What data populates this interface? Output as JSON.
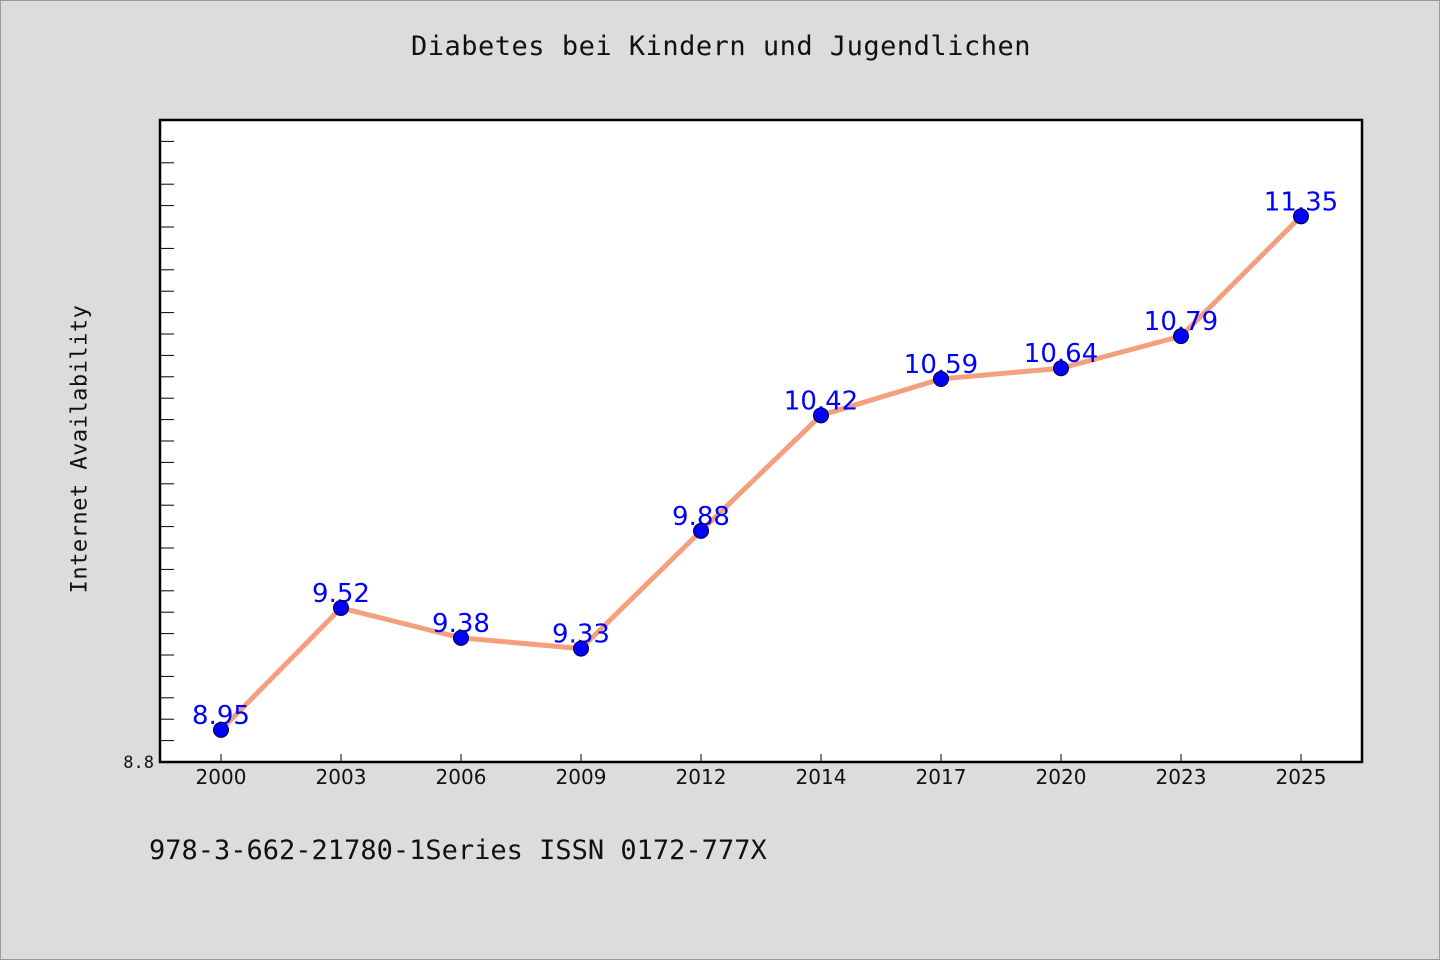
{
  "chart_data": {
    "type": "line",
    "title": "Diabetes bei Kindern und Jugendlichen",
    "ylabel": "Internet Availability",
    "xlabel": "",
    "categories": [
      "2000",
      "2003",
      "2006",
      "2009",
      "2012",
      "2014",
      "2017",
      "2020",
      "2023",
      "2025"
    ],
    "series": [
      {
        "values": [
          8.95,
          9.52,
          9.38,
          9.33,
          9.88,
          10.42,
          10.59,
          10.64,
          10.79,
          11.35
        ]
      }
    ],
    "data_labels": [
      "8.95",
      "9.52",
      "9.38",
      "9.33",
      "9.88",
      "10.42",
      "10.59",
      "10.64",
      "10.79",
      "11.35"
    ],
    "ylim": [
      8.8,
      11.8
    ],
    "y_tick_labels": [
      "8.8"
    ],
    "grid": false,
    "line_color": "#f4a07e",
    "marker_color": "#0000ff",
    "label_color": "#0000ff"
  },
  "footer": {
    "text": "978-3-662-21780-1Series ISSN 0172-777X"
  }
}
